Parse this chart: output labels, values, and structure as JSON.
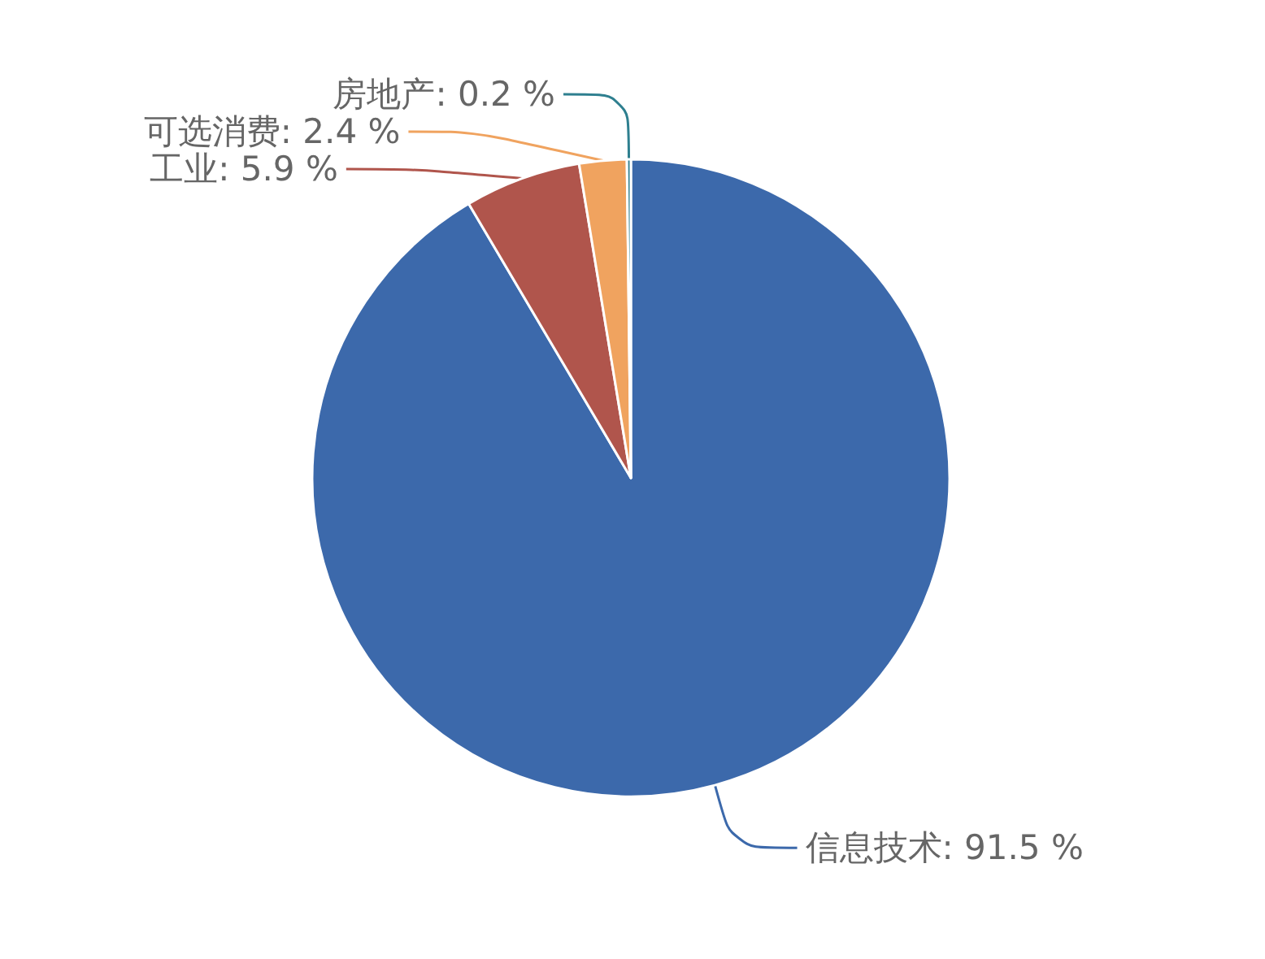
{
  "chart_data": {
    "type": "pie",
    "categories": [
      "信息技术",
      "工业",
      "可选消费",
      "房地产"
    ],
    "values": [
      91.5,
      5.9,
      2.4,
      0.2
    ],
    "colors": [
      "#3c69ab",
      "#b0554c",
      "#f0a35f",
      "#2e7f8f"
    ],
    "value_labels": [
      "91.5 %",
      "5.9 %",
      "2.4 %",
      "0.2 %"
    ],
    "legend": false
  }
}
